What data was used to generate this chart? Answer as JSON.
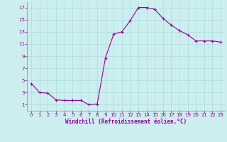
{
  "x": [
    0,
    1,
    2,
    3,
    4,
    5,
    6,
    7,
    8,
    9,
    10,
    11,
    12,
    13,
    14,
    15,
    16,
    17,
    18,
    19,
    20,
    21,
    22,
    23
  ],
  "y": [
    4.5,
    3.0,
    2.9,
    1.8,
    1.7,
    1.7,
    1.7,
    1.0,
    1.1,
    8.7,
    12.6,
    13.0,
    14.8,
    17.0,
    17.0,
    16.7,
    15.2,
    14.1,
    13.2,
    12.5,
    11.5,
    11.5,
    11.5,
    11.3
  ],
  "line_color": "#990099",
  "marker": "+",
  "marker_size": 3,
  "marker_lw": 0.8,
  "line_width": 0.8,
  "bg_color": "#cceeee",
  "grid_color": "#aadddd",
  "xlabel": "Windchill (Refroidissement éolien,°C)",
  "xlabel_color": "#990099",
  "tick_color": "#990099",
  "ylim": [
    0,
    18
  ],
  "xlim": [
    -0.5,
    23.5
  ],
  "yticks": [
    1,
    3,
    5,
    7,
    9,
    11,
    13,
    15,
    17
  ],
  "xticks": [
    0,
    1,
    2,
    3,
    4,
    5,
    6,
    7,
    8,
    9,
    10,
    11,
    12,
    13,
    14,
    15,
    16,
    17,
    18,
    19,
    20,
    21,
    22,
    23
  ],
  "tick_fontsize": 5,
  "xlabel_fontsize": 5.5,
  "grid_lw": 0.5
}
